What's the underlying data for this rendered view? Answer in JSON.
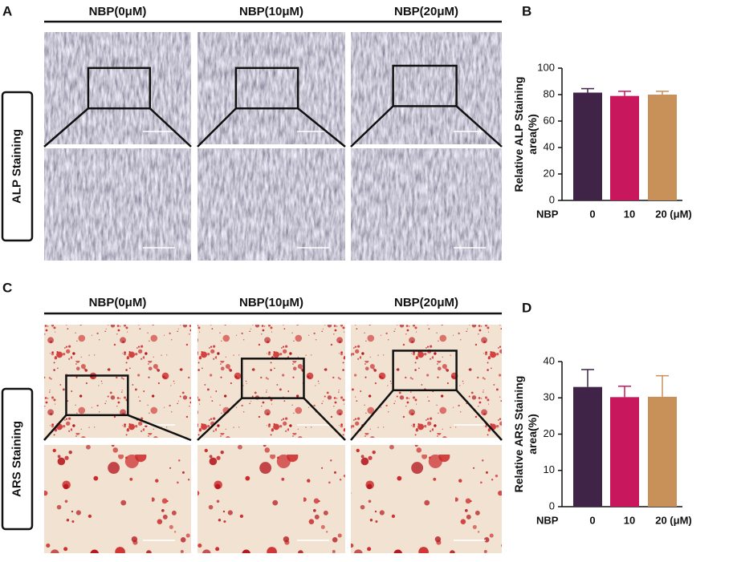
{
  "panels": [
    {
      "label": "A",
      "headers": [
        "NBP(0μM)",
        "NBP(10μM)",
        "NBP(20μM)"
      ],
      "side_label": "ALP Staining"
    },
    {
      "label": "C",
      "headers": [
        "NBP(0μM)",
        "NBP(10μM)",
        "NBP(20μM)"
      ],
      "side_label": "ARS Staining"
    }
  ],
  "chart_data": [
    {
      "type": "bar",
      "panel_label": "B",
      "ylabel": [
        "Relative ALP Staining",
        "area(%)"
      ],
      "xlabel": "NBP",
      "categories": [
        "0",
        "10",
        "20 (μM)"
      ],
      "values": [
        81.5,
        79,
        80
      ],
      "errors": [
        3,
        3.5,
        2.5
      ],
      "colors": [
        "#3f2447",
        "#c8175d",
        "#c8915a"
      ],
      "ylim": [
        0,
        100
      ],
      "yticks": [
        0,
        20,
        40,
        60,
        80,
        100
      ]
    },
    {
      "type": "bar",
      "panel_label": "D",
      "ylabel": [
        "Relative ARS Staining",
        "area(%)"
      ],
      "xlabel": "NBP",
      "categories": [
        "0",
        "10",
        "20 (μM)"
      ],
      "values": [
        33,
        30.2,
        30.3
      ],
      "errors": [
        4.8,
        3,
        5.8
      ],
      "colors": [
        "#3f2447",
        "#c8175d",
        "#c8915a"
      ],
      "ylim": [
        0,
        40
      ],
      "yticks": [
        0,
        10,
        20,
        30,
        40
      ]
    }
  ]
}
